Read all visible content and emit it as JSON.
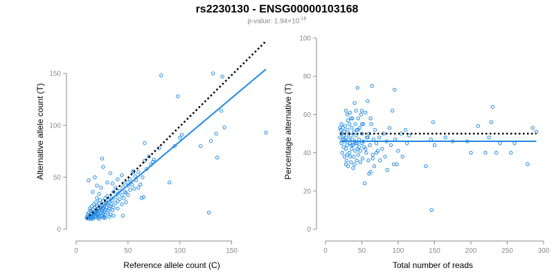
{
  "title": "rs2230130 - ENSG00000103168",
  "subtitle": {
    "prefix": "p-value: 1.94×10",
    "exponent": "-18"
  },
  "colors": {
    "series": "#1e88e5",
    "reference": "#000000",
    "axis": "#888888",
    "text": "#000000"
  },
  "chart_data": [
    {
      "type": "scatter",
      "xlabel": "Reference allele count (C)",
      "ylabel": "Alternative allele count (T)",
      "xlim": [
        0,
        185
      ],
      "ylim": [
        0,
        180
      ],
      "x_ticks": [
        0,
        50,
        100,
        150
      ],
      "y_ticks": [
        0,
        50,
        100,
        150
      ],
      "lines": [
        {
          "style": "dotted",
          "color": "#000000",
          "x": [
            10,
            183
          ],
          "y": [
            10,
            181
          ]
        },
        {
          "style": "solid",
          "color": "#1e88e5",
          "x": [
            10,
            183
          ],
          "y": [
            9,
            154
          ]
        }
      ],
      "points": [
        [
          10,
          11
        ],
        [
          11,
          12
        ],
        [
          11,
          14
        ],
        [
          12,
          10
        ],
        [
          12,
          16
        ],
        [
          13,
          12
        ],
        [
          13,
          20
        ],
        [
          14,
          11
        ],
        [
          14,
          15
        ],
        [
          14,
          18
        ],
        [
          15,
          13
        ],
        [
          15,
          17
        ],
        [
          15,
          22
        ],
        [
          16,
          12
        ],
        [
          16,
          14
        ],
        [
          16,
          19
        ],
        [
          17,
          11
        ],
        [
          17,
          15
        ],
        [
          17,
          24
        ],
        [
          18,
          13
        ],
        [
          18,
          17
        ],
        [
          18,
          21
        ],
        [
          19,
          12
        ],
        [
          19,
          16
        ],
        [
          19,
          26
        ],
        [
          20,
          14
        ],
        [
          20,
          18
        ],
        [
          20,
          22
        ],
        [
          20,
          30
        ],
        [
          21,
          11
        ],
        [
          21,
          15
        ],
        [
          21,
          20
        ],
        [
          22,
          13
        ],
        [
          22,
          17
        ],
        [
          22,
          25
        ],
        [
          22,
          34
        ],
        [
          23,
          12
        ],
        [
          23,
          19
        ],
        [
          23,
          28
        ],
        [
          24,
          16
        ],
        [
          24,
          21
        ],
        [
          24,
          40
        ],
        [
          25,
          13
        ],
        [
          25,
          18
        ],
        [
          25,
          23
        ],
        [
          26,
          15
        ],
        [
          26,
          20
        ],
        [
          26,
          27
        ],
        [
          27,
          12
        ],
        [
          27,
          17
        ],
        [
          27,
          22
        ],
        [
          28,
          14
        ],
        [
          28,
          19
        ],
        [
          28,
          30
        ],
        [
          29,
          21
        ],
        [
          29,
          25
        ],
        [
          30,
          16
        ],
        [
          30,
          24
        ],
        [
          30,
          32
        ],
        [
          31,
          18
        ],
        [
          31,
          28
        ],
        [
          32,
          20
        ],
        [
          32,
          26
        ],
        [
          33,
          22
        ],
        [
          33,
          14
        ],
        [
          34,
          24
        ],
        [
          34,
          30
        ],
        [
          35,
          18
        ],
        [
          35,
          28
        ],
        [
          36,
          21
        ],
        [
          36,
          36
        ],
        [
          38,
          25
        ],
        [
          38,
          31
        ],
        [
          40,
          20
        ],
        [
          40,
          27
        ],
        [
          40,
          34
        ],
        [
          42,
          29
        ],
        [
          42,
          37
        ],
        [
          44,
          24
        ],
        [
          44,
          33
        ],
        [
          45,
          40
        ],
        [
          46,
          30
        ],
        [
          46,
          44
        ],
        [
          48,
          35
        ],
        [
          48,
          26
        ],
        [
          50,
          33
        ],
        [
          50,
          42
        ],
        [
          50,
          45
        ],
        [
          52,
          38
        ],
        [
          52,
          48
        ],
        [
          54,
          43
        ],
        [
          55,
          55
        ],
        [
          56,
          39
        ],
        [
          57,
          51
        ],
        [
          58,
          47
        ],
        [
          60,
          55
        ],
        [
          62,
          43
        ],
        [
          64,
          50
        ],
        [
          65,
          31
        ],
        [
          66,
          66
        ],
        [
          68,
          58
        ],
        [
          70,
          70
        ],
        [
          72,
          62
        ],
        [
          74,
          65
        ],
        [
          75,
          67
        ],
        [
          12,
          47
        ],
        [
          16,
          36
        ],
        [
          18,
          50
        ],
        [
          20,
          42
        ],
        [
          25,
          68
        ],
        [
          26,
          60
        ],
        [
          30,
          45
        ],
        [
          33,
          54
        ],
        [
          35,
          44
        ],
        [
          38,
          40
        ],
        [
          40,
          48
        ],
        [
          44,
          52
        ],
        [
          47,
          36
        ],
        [
          55,
          56
        ],
        [
          60,
          40
        ],
        [
          63,
          30
        ],
        [
          66,
          83
        ],
        [
          80,
          78
        ],
        [
          82,
          148
        ],
        [
          90,
          45
        ],
        [
          95,
          80
        ],
        [
          98,
          128
        ],
        [
          100,
          88
        ],
        [
          102,
          91
        ],
        [
          120,
          80
        ],
        [
          128,
          16
        ],
        [
          130,
          85
        ],
        [
          132,
          150
        ],
        [
          135,
          92
        ],
        [
          136,
          69
        ],
        [
          140,
          114
        ],
        [
          141,
          147
        ],
        [
          143,
          98
        ],
        [
          183,
          93
        ],
        [
          45,
          13
        ],
        [
          36,
          13
        ],
        [
          28,
          11
        ],
        [
          22,
          10
        ],
        [
          26,
          11
        ],
        [
          32,
          12
        ],
        [
          14,
          10
        ],
        [
          16,
          10
        ]
      ]
    },
    {
      "type": "scatter",
      "xlabel": "Total number of reads",
      "ylabel": "Percentage alternative (T)",
      "xlim": [
        0,
        300
      ],
      "ylim": [
        0,
        100
      ],
      "x_ticks": [
        0,
        50,
        100,
        150,
        200,
        250,
        300
      ],
      "y_ticks": [
        0,
        20,
        40,
        60,
        80,
        100
      ],
      "lines": [
        {
          "style": "dotted",
          "color": "#000000",
          "x": [
            20,
            290
          ],
          "y": [
            50,
            50
          ]
        },
        {
          "style": "solid",
          "color": "#1e88e5",
          "x": [
            20,
            290
          ],
          "y": [
            46,
            46
          ]
        }
      ],
      "points": [
        [
          20,
          48
        ],
        [
          21,
          52
        ],
        [
          22,
          45
        ],
        [
          22,
          55
        ],
        [
          23,
          40
        ],
        [
          23,
          50
        ],
        [
          24,
          47
        ],
        [
          24,
          53
        ],
        [
          25,
          43
        ],
        [
          25,
          49
        ],
        [
          26,
          51
        ],
        [
          26,
          38
        ],
        [
          27,
          46
        ],
        [
          27,
          54
        ],
        [
          28,
          62
        ],
        [
          28,
          42
        ],
        [
          29,
          48
        ],
        [
          29,
          36
        ],
        [
          30,
          52
        ],
        [
          30,
          44
        ],
        [
          31,
          57
        ],
        [
          31,
          33
        ],
        [
          32,
          47
        ],
        [
          32,
          50
        ],
        [
          33,
          40
        ],
        [
          33,
          55
        ],
        [
          34,
          45
        ],
        [
          34,
          61
        ],
        [
          35,
          49
        ],
        [
          35,
          35
        ],
        [
          36,
          53
        ],
        [
          36,
          42
        ],
        [
          37,
          47
        ],
        [
          37,
          58
        ],
        [
          38,
          44
        ],
        [
          38,
          32
        ],
        [
          39,
          51
        ],
        [
          39,
          38
        ],
        [
          40,
          46
        ],
        [
          40,
          66
        ],
        [
          41,
          55
        ],
        [
          41,
          41
        ],
        [
          42,
          49
        ],
        [
          42,
          62
        ],
        [
          43,
          36
        ],
        [
          43,
          52
        ],
        [
          44,
          45
        ],
        [
          44,
          74
        ],
        [
          45,
          58
        ],
        [
          45,
          39
        ],
        [
          46,
          47
        ],
        [
          47,
          53
        ],
        [
          48,
          41
        ],
        [
          48,
          35
        ],
        [
          49,
          60
        ],
        [
          50,
          45
        ],
        [
          50,
          50
        ],
        [
          51,
          37
        ],
        [
          52,
          55
        ],
        [
          53,
          43
        ],
        [
          54,
          24
        ],
        [
          55,
          61
        ],
        [
          56,
          40
        ],
        [
          57,
          48
        ],
        [
          58,
          67
        ],
        [
          59,
          36
        ],
        [
          60,
          50
        ],
        [
          61,
          44
        ],
        [
          62,
          30
        ],
        [
          63,
          55
        ],
        [
          64,
          75
        ],
        [
          65,
          39
        ],
        [
          66,
          47
        ],
        [
          67,
          33
        ],
        [
          68,
          52
        ],
        [
          70,
          45
        ],
        [
          72,
          41
        ],
        [
          74,
          48
        ],
        [
          75,
          36
        ],
        [
          78,
          42
        ],
        [
          80,
          50
        ],
        [
          82,
          38
        ],
        [
          84,
          46
        ],
        [
          85,
          31
        ],
        [
          88,
          53
        ],
        [
          90,
          44
        ],
        [
          92,
          62
        ],
        [
          94,
          34
        ],
        [
          95,
          73
        ],
        [
          96,
          47
        ],
        [
          98,
          34
        ],
        [
          100,
          41
        ],
        [
          104,
          50
        ],
        [
          106,
          38
        ],
        [
          110,
          52
        ],
        [
          112,
          45
        ],
        [
          115,
          49
        ],
        [
          138,
          33
        ],
        [
          145,
          47
        ],
        [
          146,
          10
        ],
        [
          148,
          56
        ],
        [
          150,
          44
        ],
        [
          165,
          48
        ],
        [
          175,
          46
        ],
        [
          195,
          46
        ],
        [
          200,
          40
        ],
        [
          210,
          54
        ],
        [
          220,
          40
        ],
        [
          225,
          48
        ],
        [
          228,
          56
        ],
        [
          230,
          64
        ],
        [
          235,
          40
        ],
        [
          240,
          45
        ],
        [
          255,
          40
        ],
        [
          260,
          45
        ],
        [
          278,
          34
        ],
        [
          285,
          53
        ],
        [
          290,
          51
        ],
        [
          30,
          39
        ],
        [
          35,
          58
        ],
        [
          40,
          34
        ],
        [
          45,
          52
        ],
        [
          50,
          55
        ],
        [
          55,
          42
        ],
        [
          60,
          29
        ],
        [
          65,
          37
        ],
        [
          70,
          40
        ],
        [
          50,
          62
        ],
        [
          30,
          60
        ],
        [
          20,
          53
        ],
        [
          22,
          50
        ],
        [
          26,
          47
        ],
        [
          28,
          34
        ],
        [
          34,
          38
        ],
        [
          42,
          45
        ],
        [
          46,
          43
        ],
        [
          58,
          48
        ],
        [
          62,
          58
        ],
        [
          36,
          44
        ],
        [
          44,
          42
        ],
        [
          52,
          46
        ]
      ]
    }
  ]
}
